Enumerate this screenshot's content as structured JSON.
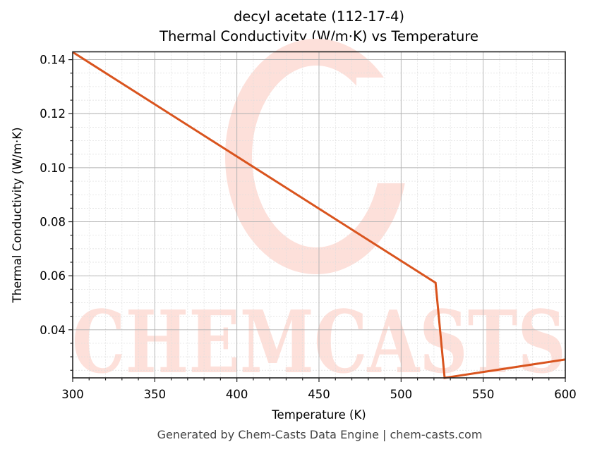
{
  "chart": {
    "title_line1": "decyl acetate (112-17-4)",
    "title_line2": "Thermal Conductivity (W/m·K) vs Temperature",
    "xlabel": "Temperature (K)",
    "ylabel": "Thermal Conductivity (W/m·K)",
    "footer": "Generated by Chem-Casts Data Engine | chem-casts.com",
    "watermark": "CHEMCASTS",
    "line_color": "#d9541e",
    "watermark_color": "#fde0da"
  },
  "chart_data": {
    "type": "line",
    "title": "decyl acetate (112-17-4) Thermal Conductivity (W/m·K) vs Temperature",
    "xlabel": "Temperature (K)",
    "ylabel": "Thermal Conductivity (W/m·K)",
    "xlim": [
      300,
      600
    ],
    "ylim": [
      0.0222,
      0.1429
    ],
    "x_ticks": [
      300,
      350,
      400,
      450,
      500,
      550,
      600
    ],
    "y_ticks": [
      0.04,
      0.06,
      0.08,
      0.1,
      0.12,
      0.14
    ],
    "x_tick_labels": [
      "300",
      "350",
      "400",
      "450",
      "500",
      "550",
      "600"
    ],
    "y_tick_labels": [
      "0.04",
      "0.06",
      "0.08",
      "0.10",
      "0.12",
      "0.14"
    ],
    "grid": true,
    "legend": null,
    "series": [
      {
        "name": "Thermal Conductivity",
        "x": [
          300,
          521,
          526.5,
          600
        ],
        "y": [
          0.1428,
          0.0574,
          0.0222,
          0.029
        ]
      }
    ]
  }
}
